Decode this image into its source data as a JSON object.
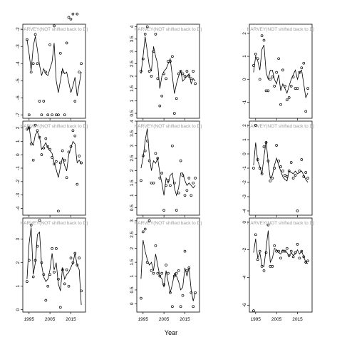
{
  "chart_data": {
    "type": "line",
    "xlabel": "Year",
    "x_ticks": [
      1995,
      2005,
      2015
    ],
    "colors": {
      "line": "#000000",
      "points": "#000000",
      "frame": "#000000",
      "title": "#9a9a9a"
    },
    "panels": [
      {
        "title": "HARVEY(NOT shifted back to D)",
        "ylim": [
          -7.2,
          -1.7
        ],
        "yticks": [
          -7,
          -6,
          -5,
          -4,
          -3,
          -2
        ],
        "x": [
          1994,
          1995,
          1996,
          1997,
          1998,
          1999,
          2000,
          2001,
          2002,
          2003,
          2004,
          2005,
          2006,
          2007,
          2008,
          2009,
          2010,
          2011,
          2012,
          2013,
          2014,
          2015,
          2016,
          2017,
          2018,
          2019,
          2020
        ],
        "points": [
          -2.6,
          -7.0,
          -4.5,
          -4.0,
          -2.3,
          -4.0,
          -6.2,
          -7.0,
          -6.2,
          -4.5,
          -7.0,
          -2.9,
          -7.0,
          -1.8,
          -7.0,
          -7.0,
          -3.4,
          -4.5,
          -7.0,
          -2.8,
          -1.3,
          -1.4,
          -1.1,
          -6.2,
          -1.1,
          -4.5,
          -4.0
        ],
        "line": [
          -2.6,
          -3.4,
          -4.4,
          -3.0,
          -2.4,
          -3.2,
          -4.1,
          -4.7,
          -4.3,
          -4.6,
          -4.7,
          -4.3,
          -3.9,
          -2.8,
          -5.0,
          -5.7,
          -5.0,
          -4.3,
          -4.6,
          -4.5,
          -5.1,
          -5.7,
          -5.3,
          -4.8,
          -5.9,
          -5.2,
          -4.5
        ]
      },
      {
        "title": "HARVEY(NOT shifted back to D)",
        "ylim": [
          0.3,
          4.1
        ],
        "yticks": [
          0.5,
          1.0,
          1.5,
          2.0,
          2.5,
          3.0,
          3.5,
          4.0
        ],
        "x": [
          1994,
          1995,
          1996,
          1997,
          1998,
          1999,
          2000,
          2001,
          2002,
          2003,
          2004,
          2005,
          2006,
          2007,
          2008,
          2009,
          2010,
          2011,
          2012,
          2013,
          2014,
          2015,
          2016,
          2017,
          2018,
          2019,
          2020
        ],
        "points": [
          2.2,
          2.7,
          3.7,
          4.0,
          2.2,
          2.0,
          3.0,
          3.7,
          1.9,
          0.8,
          1.2,
          2.1,
          1.9,
          2.6,
          2.6,
          2.8,
          0.5,
          1.1,
          2.1,
          2.2,
          2.1,
          2.0,
          2.2,
          2.0,
          1.9,
          2.2,
          1.7
        ],
        "line": [
          2.1,
          2.8,
          3.6,
          3.0,
          2.4,
          2.2,
          3.2,
          2.8,
          2.5,
          1.5,
          2.0,
          2.2,
          2.3,
          2.5,
          2.7,
          2.0,
          1.3,
          1.7,
          2.0,
          2.2,
          1.8,
          1.9,
          2.0,
          2.1,
          1.7,
          1.9,
          1.8
        ]
      },
      {
        "title": "HARVEY(NOT shifted back to D)",
        "ylim": [
          -1.7,
          2.4
        ],
        "yticks": [
          -1,
          0,
          1,
          2
        ],
        "x": [
          1994,
          1995,
          1996,
          1997,
          1998,
          1999,
          2000,
          2001,
          2002,
          2003,
          2004,
          2005,
          2006,
          2007,
          2008,
          2009,
          2010,
          2011,
          2012,
          2013,
          2014,
          2015,
          2016,
          2017,
          2018,
          2019,
          2020
        ],
        "points": [
          0.6,
          1.1,
          0.9,
          0.0,
          1.9,
          1.7,
          -0.5,
          -0.5,
          0.0,
          0.1,
          -0.3,
          0.3,
          0.9,
          -1.1,
          0.4,
          -0.3,
          -0.9,
          -0.8,
          -0.3,
          0.1,
          -0.4,
          -0.4,
          0.3,
          0.5,
          0.7,
          -1.4,
          -0.4
        ],
        "line": [
          0.3,
          1.0,
          0.8,
          0.4,
          1.3,
          1.5,
          0.3,
          0.0,
          0.4,
          0.4,
          0.0,
          -0.2,
          0.2,
          -0.5,
          -0.2,
          -0.4,
          -0.6,
          -0.3,
          0.0,
          0.2,
          0.4,
          0.0,
          0.3,
          0.4,
          -0.2,
          -0.8,
          -0.6
        ]
      },
      {
        "title": "HARVEY(NOT shifted back to D)",
        "ylim": [
          -4.5,
          2.5
        ],
        "yticks": [
          -4,
          -3,
          -2,
          -1,
          0,
          1,
          2
        ],
        "x": [
          1994,
          1995,
          1996,
          1997,
          1998,
          1999,
          2000,
          2001,
          2002,
          2003,
          2004,
          2005,
          2006,
          2007,
          2008,
          2009,
          2010,
          2011,
          2012,
          2013,
          2014,
          2015,
          2016,
          2017,
          2018,
          2019,
          2020
        ],
        "points": [
          1.9,
          2.0,
          0.8,
          -0.4,
          2.2,
          1.8,
          1.3,
          0.0,
          0.5,
          1.2,
          0.6,
          0.4,
          -0.2,
          -0.7,
          -0.5,
          -4.2,
          -0.6,
          0.3,
          -0.4,
          -1.7,
          0.2,
          0.6,
          1.8,
          1.4,
          -2.2,
          -0.1,
          -0.6
        ],
        "line": [
          1.8,
          2.1,
          1.0,
          0.7,
          1.5,
          1.7,
          1.3,
          0.4,
          0.6,
          0.9,
          0.5,
          0.3,
          0.1,
          -0.6,
          -1.1,
          -1.7,
          -0.9,
          -0.2,
          -0.8,
          -1.2,
          0.0,
          0.5,
          1.0,
          0.8,
          -0.6,
          -0.4,
          -0.7
        ]
      },
      {
        "title": "HARVEY(NOT shifted back to D)",
        "ylim": [
          0.2,
          4.0
        ],
        "yticks": [
          0.5,
          1.0,
          1.5,
          2.0,
          2.5,
          3.0,
          3.5,
          4.0
        ],
        "x": [
          1994,
          1995,
          1996,
          1997,
          1998,
          1999,
          2000,
          2001,
          2002,
          2003,
          2004,
          2005,
          2006,
          2007,
          2008,
          2009,
          2010,
          2011,
          2012,
          2013,
          2014,
          2015,
          2016,
          2017,
          2018,
          2019,
          2020
        ],
        "points": [
          1.6,
          2.6,
          2.8,
          3.2,
          2.4,
          1.5,
          1.5,
          2.7,
          2.5,
          1.7,
          1.9,
          0.4,
          1.4,
          1.6,
          1.4,
          3.0,
          1.5,
          0.4,
          1.1,
          2.4,
          1.8,
          1.0,
          1.2,
          1.7,
          1.0,
          1.5,
          1.7
        ],
        "line": [
          2.1,
          2.5,
          3.2,
          3.7,
          2.6,
          2.0,
          2.4,
          2.3,
          2.5,
          1.9,
          1.5,
          1.0,
          1.7,
          1.5,
          1.8,
          1.9,
          1.3,
          1.0,
          1.3,
          1.9,
          1.9,
          1.6,
          1.4,
          1.5,
          1.4,
          1.3,
          1.4
        ]
      },
      {
        "title": "HARVEY(NOT shifted back to D)",
        "ylim": [
          -4.3,
          2.3
        ],
        "yticks": [
          -4,
          -3,
          -2,
          -1,
          0,
          1,
          2
        ],
        "x": [
          1994,
          1995,
          1996,
          1997,
          1998,
          1999,
          2000,
          2001,
          2002,
          2003,
          2004,
          2005,
          2006,
          2007,
          2008,
          2009,
          2010,
          2011,
          2012,
          2013,
          2014,
          2015,
          2016,
          2017,
          2018,
          2019,
          2020
        ],
        "points": [
          -1.0,
          2.0,
          -0.4,
          -1.0,
          -1.4,
          0.5,
          0.8,
          -0.5,
          -1.9,
          -1.7,
          -1.0,
          0.6,
          -0.5,
          -0.9,
          -1.2,
          -1.5,
          -1.6,
          -1.2,
          -0.6,
          -1.7,
          -1.5,
          -4.0,
          -1.2,
          -0.4,
          -1.6,
          -1.3,
          -1.7
        ],
        "line": [
          -0.8,
          0.8,
          -0.5,
          -0.9,
          -1.4,
          -0.2,
          0.9,
          -0.6,
          -1.7,
          -1.5,
          -0.8,
          -0.3,
          -0.8,
          -1.2,
          -1.6,
          -1.8,
          -1.9,
          -1.2,
          -1.3,
          -1.4,
          -1.2,
          -1.4,
          -1.3,
          -1.2,
          -1.5,
          -1.8,
          -2.0
        ]
      },
      {
        "title": "HARVEY(NOT shifted back to D)",
        "ylim": [
          -0.1,
          3.9
        ],
        "yticks": [
          0,
          1,
          2,
          3
        ],
        "x": [
          1994,
          1995,
          1996,
          1997,
          1998,
          1999,
          2000,
          2001,
          2002,
          2003,
          2004,
          2005,
          2006,
          2007,
          2008,
          2009,
          2010,
          2011,
          2012,
          2013,
          2014,
          2015,
          2016,
          2017,
          2018,
          2019,
          2020
        ],
        "points": [
          1.2,
          2.1,
          3.6,
          1.4,
          2.1,
          2.7,
          3.8,
          2.0,
          1.5,
          0.4,
          1.0,
          1.5,
          2.6,
          1.6,
          2.6,
          1.3,
          0.1,
          1.7,
          1.1,
          1.7,
          1.0,
          2.2,
          2.0,
          2.4,
          1.9,
          2.2,
          0.8
        ],
        "line": [
          1.3,
          2.8,
          3.5,
          1.5,
          2.0,
          3.2,
          3.3,
          1.9,
          1.4,
          1.2,
          1.3,
          1.7,
          2.4,
          1.7,
          2.0,
          1.1,
          0.8,
          1.8,
          1.3,
          1.5,
          1.6,
          1.8,
          2.0,
          2.4,
          1.9,
          1.7,
          0.2
        ]
      },
      {
        "title": "HARVEY(NOT shifted back to D)",
        "ylim": [
          -0.3,
          3.1
        ],
        "yticks": [
          0.0,
          0.5,
          1.0,
          1.5,
          2.0,
          2.5,
          3.0
        ],
        "x": [
          1994,
          1995,
          1996,
          1997,
          1998,
          1999,
          2000,
          2001,
          2002,
          2003,
          2004,
          2005,
          2006,
          2007,
          2008,
          2009,
          2010,
          2011,
          2012,
          2013,
          2014,
          2015,
          2016,
          2017,
          2018,
          2019,
          2020
        ],
        "points": [
          0.2,
          2.6,
          2.7,
          1.5,
          3.0,
          1.2,
          1.1,
          2.1,
          1.1,
          1.0,
          1.1,
          0.7,
          1.4,
          1.1,
          0.4,
          -0.1,
          1.0,
          1.1,
          1.2,
          -0.1,
          0.3,
          1.9,
          1.2,
          1.3,
          0.4,
          -0.1,
          0.4
        ],
        "line": [
          0.9,
          2.3,
          1.9,
          1.6,
          1.4,
          1.5,
          1.2,
          1.8,
          1.4,
          1.0,
          0.9,
          0.6,
          1.2,
          0.8,
          0.4,
          0.7,
          1.1,
          1.0,
          0.8,
          0.5,
          0.6,
          1.3,
          1.0,
          1.3,
          0.5,
          0.1,
          0.4
        ]
      },
      {
        "title": "HARVEY(NOT shifted back to D)",
        "ylim": [
          -6.5,
          0.3
        ],
        "yticks": [
          -6,
          -4,
          -2,
          0
        ],
        "x": [
          1994,
          1995,
          1996,
          1997,
          1998,
          1999,
          2000,
          2001,
          2002,
          2003,
          2004,
          2005,
          2006,
          2007,
          2008,
          2009,
          2010,
          2011,
          2012,
          2013,
          2014,
          2015,
          2016,
          2017,
          2018,
          2019,
          2020
        ],
        "points": [
          -6.4,
          -0.9,
          -2.7,
          -2.1,
          -3.2,
          -3.5,
          -2.2,
          -0.2,
          -3.2,
          -3.2,
          -1.7,
          -2.1,
          -2.1,
          -2.6,
          -2.1,
          -2.1,
          -1.9,
          -2.4,
          -2.1,
          -2.5,
          -2.2,
          -1.6,
          -2.6,
          -2.1,
          -2.5,
          -2.9,
          -2.8
        ],
        "line": [
          -2.2,
          -1.2,
          -2.6,
          -2.2,
          -3.1,
          -3.2,
          -1.9,
          -0.6,
          -2.9,
          -2.6,
          -1.9,
          -2.0,
          -2.2,
          -2.3,
          -2.0,
          -2.1,
          -2.2,
          -2.5,
          -2.2,
          -2.4,
          -2.3,
          -2.0,
          -2.3,
          -2.1,
          -2.5,
          -2.9,
          -3.0
        ]
      }
    ]
  }
}
